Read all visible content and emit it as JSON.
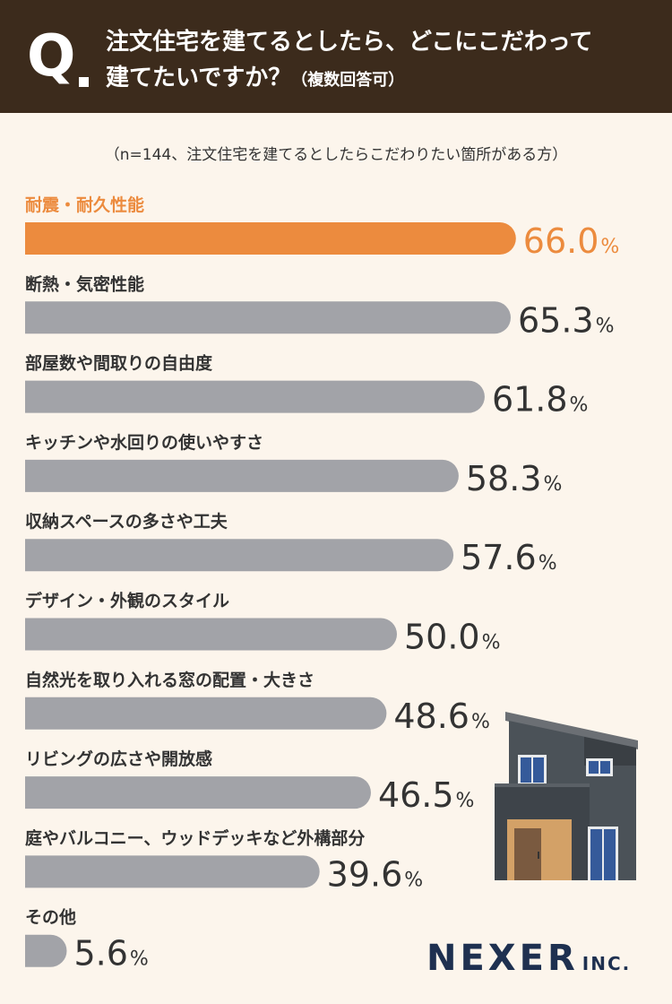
{
  "question": {
    "mark": "Q",
    "line1": "注文住宅を建てるとしたら、どこにこだわって",
    "line2": "建てたいですか？",
    "line2_note": "（複数回答可）"
  },
  "sample_note": "（n=144、注文住宅を建てるとしたらこだわりたい箇所がある方）",
  "colors": {
    "header_bg": "#3c2b1c",
    "background": "#fcf5ec",
    "highlight": "#ec8b3e",
    "bar": "#a2a3a8",
    "value_text": "#333333",
    "logo": "#1e3050"
  },
  "chart_data": {
    "type": "bar",
    "orientation": "horizontal",
    "unit": "%",
    "categories": [
      "耐震・耐久性能",
      "断熱・気密性能",
      "部屋数や間取りの自由度",
      "キッチンや水回りの使いやすさ",
      "収納スペースの多さや工夫",
      "デザイン・外観のスタイル",
      "自然光を取り入れる窓の配置・大きさ",
      "リビングの広さや開放感",
      "庭やバルコニー、ウッドデッキなど外構部分",
      "その他"
    ],
    "values": [
      66.0,
      65.3,
      61.8,
      58.3,
      57.6,
      50.0,
      48.6,
      46.5,
      39.6,
      5.6
    ],
    "labels": [
      "66.0",
      "65.3",
      "61.8",
      "58.3",
      "57.6",
      "50.0",
      "48.6",
      "46.5",
      "39.6",
      "5.6"
    ],
    "highlight_index": 0
  },
  "logo": {
    "main": "NEXER",
    "suffix": "INC."
  },
  "illustration": {
    "icon": "house-icon"
  }
}
